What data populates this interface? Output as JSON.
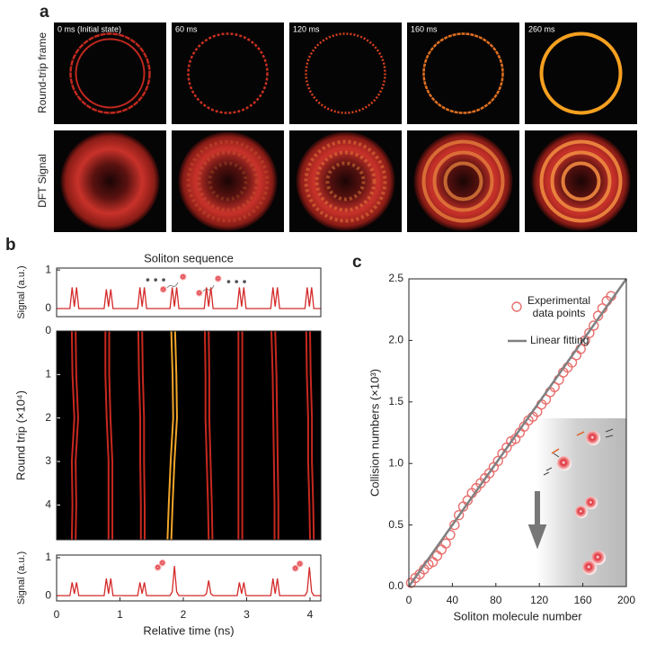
{
  "panel_a": {
    "label": "a",
    "row_labels": [
      "Round-trip frame",
      "DFT Signal"
    ],
    "frames": [
      "0 ms (Initial state)",
      "60 ms",
      "120 ms",
      "160 ms",
      "260 ms"
    ]
  },
  "chart_data": [
    {
      "type": "line",
      "label": "b",
      "title": "Soliton sequence",
      "ylabel": "Signal (a.u.)",
      "color": "#d42a2a",
      "xlim": [
        0,
        4.17
      ],
      "ylim": [
        -0.21,
        1.05
      ],
      "yticks": [
        0,
        1
      ],
      "x": [
        0,
        0.21,
        0.245,
        0.28,
        0.315,
        0.35,
        0.75,
        0.785,
        0.82,
        0.855,
        0.89,
        1.28,
        1.315,
        1.35,
        1.385,
        1.42,
        1.79,
        1.825,
        1.86,
        1.895,
        1.93,
        2.33,
        2.365,
        2.4,
        2.435,
        2.47,
        2.85,
        2.885,
        2.92,
        2.955,
        2.99,
        3.38,
        3.415,
        3.45,
        3.485,
        3.52,
        3.92,
        3.955,
        3.99,
        4.025,
        4.06,
        4.17
      ],
      "values": [
        0,
        0,
        0.55,
        0.05,
        0.55,
        0,
        0,
        0.5,
        0.05,
        0.5,
        0,
        0,
        0.55,
        0.05,
        0.55,
        0,
        0,
        0.55,
        0.05,
        0.55,
        0,
        0,
        0.55,
        0.05,
        0.55,
        0,
        0,
        0.55,
        0.05,
        0.55,
        0,
        0,
        0.55,
        0.05,
        0.55,
        0,
        0,
        0.55,
        0.05,
        0.55,
        0,
        0
      ]
    },
    {
      "type": "trace",
      "ylabel": "Round trip (×10⁴)",
      "xlim": [
        0,
        4.17
      ],
      "ylim": [
        0,
        4.8
      ],
      "y_inverted": true,
      "yticks": [
        0,
        1,
        2,
        3,
        4
      ],
      "series": [
        {
          "color": "#c8281f",
          "x": [
            0.27,
            0.28,
            0.31,
            0.27,
            0.28,
            0.27
          ],
          "values": [
            0,
            1,
            2,
            3,
            4,
            4.8
          ]
        },
        {
          "color": "#c8281f",
          "x": [
            0.8,
            0.8,
            0.82,
            0.85,
            0.85,
            0.85
          ],
          "values": [
            0,
            1,
            2,
            3,
            4,
            4.8
          ]
        },
        {
          "color": "#c8281f",
          "x": [
            1.32,
            1.33,
            1.35,
            1.35,
            1.36,
            1.36
          ],
          "values": [
            0,
            1,
            2,
            3,
            4,
            4.8
          ]
        },
        {
          "color": "#f2a62a",
          "x": [
            1.84,
            1.86,
            1.87,
            1.83,
            1.8,
            1.78
          ],
          "values": [
            0,
            1,
            2,
            3,
            4,
            4.8
          ]
        },
        {
          "color": "#c8281f",
          "x": [
            2.37,
            2.38,
            2.38,
            2.4,
            2.42,
            2.43
          ],
          "values": [
            0,
            1,
            2,
            3,
            4,
            4.8
          ]
        },
        {
          "color": "#c8281f",
          "x": [
            2.9,
            2.9,
            2.9,
            2.9,
            2.9,
            2.9
          ],
          "values": [
            0,
            1,
            2,
            3,
            4,
            4.8
          ]
        },
        {
          "color": "#c8281f",
          "x": [
            3.42,
            3.44,
            3.45,
            3.46,
            3.47,
            3.47
          ],
          "values": [
            0,
            1,
            2,
            3,
            4,
            4.8
          ]
        },
        {
          "color": "#c8281f",
          "x": [
            3.97,
            3.98,
            4.0,
            4.0,
            4.02,
            4.03
          ],
          "values": [
            0,
            1,
            2,
            3,
            4,
            4.8
          ]
        }
      ]
    },
    {
      "type": "line",
      "ylabel": "Signal (a.u.)",
      "xlabel": "Relative time (ns)",
      "color": "#d42a2a",
      "xlim": [
        0,
        4.17
      ],
      "ylim": [
        -0.14,
        1.07
      ],
      "yticks": [
        0,
        1
      ],
      "xticks": [
        0,
        1,
        2,
        3,
        4
      ],
      "x": [
        0,
        0.21,
        0.245,
        0.28,
        0.315,
        0.35,
        0.75,
        0.785,
        0.82,
        0.855,
        0.89,
        1.28,
        1.315,
        1.35,
        1.385,
        1.42,
        1.79,
        1.825,
        1.86,
        1.895,
        1.93,
        2.33,
        2.365,
        2.4,
        2.435,
        2.47,
        2.85,
        2.885,
        2.92,
        2.955,
        2.99,
        3.38,
        3.415,
        3.45,
        3.485,
        3.52,
        3.92,
        3.955,
        3.99,
        4.025,
        4.06,
        4.17
      ],
      "values": [
        0,
        0,
        0.35,
        0.05,
        0.35,
        0,
        0,
        0.45,
        0.05,
        0.45,
        0,
        0,
        0.35,
        0.05,
        0.35,
        0,
        0,
        0.1,
        0.78,
        0.1,
        0,
        0,
        0.05,
        0.4,
        0.05,
        0,
        0,
        0.35,
        0.05,
        0.35,
        0,
        0,
        0.45,
        0.05,
        0.45,
        0,
        0,
        0.1,
        0.75,
        0.1,
        0,
        0
      ]
    },
    {
      "type": "scatter",
      "label": "c",
      "xlabel": "Soliton molecule number",
      "ylabel": "Collision numbers  (×10³)",
      "xlim": [
        0,
        200
      ],
      "ylim": [
        0,
        2.5
      ],
      "xticks": [
        0,
        40,
        80,
        120,
        160,
        200
      ],
      "yticks": [
        {
          "value": 0,
          "label": "0.0"
        },
        {
          "value": 0.5,
          "label": "0.5"
        },
        {
          "value": 1,
          "label": "1.0"
        },
        {
          "value": 1.5,
          "label": "1.5"
        },
        {
          "value": 2,
          "label": "2.0"
        },
        {
          "value": 2.5,
          "label": "2.5"
        }
      ],
      "series": [
        {
          "name": "Experimental data points",
          "color": "#e8706f",
          "x": [
            2,
            6,
            10,
            14,
            18,
            22,
            26,
            30,
            34,
            38,
            42,
            46,
            50,
            54,
            58,
            62,
            66,
            70,
            74,
            78,
            82,
            86,
            90,
            94,
            98,
            102,
            106,
            110,
            114,
            118,
            122,
            126,
            130,
            134,
            138,
            142,
            146,
            150,
            154,
            158,
            162,
            166,
            170,
            174,
            178,
            182,
            186
          ],
          "values": [
            0.03,
            0.07,
            0.1,
            0.14,
            0.18,
            0.2,
            0.25,
            0.3,
            0.35,
            0.42,
            0.5,
            0.58,
            0.65,
            0.7,
            0.76,
            0.8,
            0.84,
            0.88,
            0.92,
            0.97,
            1.02,
            1.08,
            1.13,
            1.18,
            1.2,
            1.25,
            1.3,
            1.35,
            1.38,
            1.42,
            1.48,
            1.52,
            1.58,
            1.62,
            1.68,
            1.74,
            1.78,
            1.82,
            1.88,
            1.93,
            2.0,
            2.06,
            2.12,
            2.2,
            2.26,
            2.32,
            2.36
          ]
        },
        {
          "name": "Linear fitting",
          "type": "line",
          "color": "#808080",
          "x": [
            0,
            200
          ],
          "values": [
            0,
            2.5
          ]
        }
      ]
    }
  ]
}
